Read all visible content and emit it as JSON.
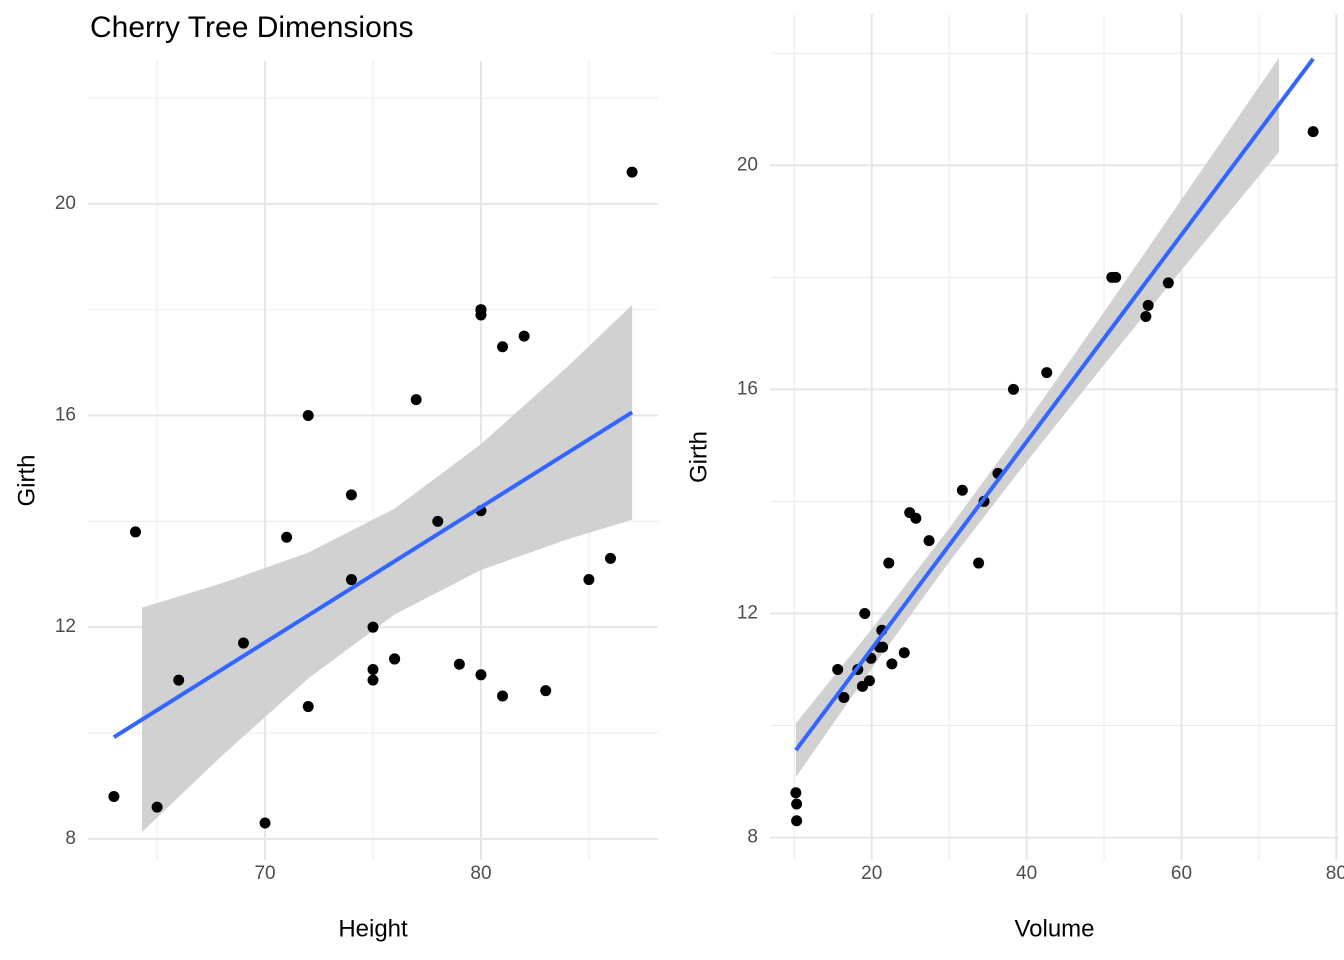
{
  "chart_data": [
    {
      "type": "scatter",
      "title": "Cherry Tree Dimensions",
      "x_label": "Height",
      "y_label": "Girth",
      "x": [
        70,
        65,
        63,
        72,
        81,
        83,
        66,
        75,
        80,
        75,
        79,
        76,
        76,
        69,
        75,
        74,
        85,
        86,
        71,
        64,
        78,
        80,
        74,
        72,
        77,
        81,
        82,
        80,
        80,
        80,
        87
      ],
      "values": [
        8.3,
        8.6,
        8.8,
        10.5,
        10.7,
        10.8,
        11.0,
        11.0,
        11.1,
        11.2,
        11.3,
        11.4,
        11.4,
        11.7,
        12.0,
        12.9,
        12.9,
        13.3,
        13.7,
        13.8,
        14.0,
        14.2,
        14.5,
        16.0,
        16.3,
        17.3,
        17.5,
        17.9,
        18.0,
        18.0,
        20.6
      ],
      "color": "#000000",
      "fit": {
        "x": [
          63,
          87
        ],
        "values": [
          9.92,
          16.06
        ],
        "color": "#3366FF"
      },
      "ribbon": {
        "x": [
          64.3,
          68,
          72,
          76,
          80,
          84,
          87
        ],
        "lower": [
          8.13,
          9.57,
          11.03,
          12.24,
          13.08,
          13.66,
          14.03
        ],
        "upper": [
          12.37,
          12.83,
          13.41,
          14.24,
          15.46,
          16.92,
          18.09
        ],
        "color": "#cccccc"
      },
      "xlim": [
        61.8,
        88.2
      ],
      "xticks": [
        70,
        80
      ],
      "xminor": [
        65,
        75,
        85
      ],
      "ylim": [
        7.6,
        22.7
      ],
      "yticks": [
        8,
        12,
        16,
        20
      ],
      "yminor": [
        10,
        14,
        18,
        22
      ],
      "grid": true
    },
    {
      "type": "scatter",
      "x_label": "Volume",
      "y_label": "Girth",
      "x": [
        10.3,
        10.3,
        10.2,
        16.4,
        18.8,
        19.7,
        15.6,
        18.2,
        22.6,
        19.9,
        24.2,
        21.0,
        21.4,
        21.3,
        19.1,
        22.2,
        33.8,
        27.4,
        25.7,
        24.9,
        34.5,
        31.7,
        36.3,
        38.3,
        42.6,
        55.4,
        55.7,
        58.3,
        51.5,
        51.0,
        77.0
      ],
      "values": [
        8.3,
        8.6,
        8.8,
        10.5,
        10.7,
        10.8,
        11.0,
        11.0,
        11.1,
        11.2,
        11.3,
        11.4,
        11.4,
        11.7,
        12.0,
        12.9,
        12.9,
        13.3,
        13.7,
        13.8,
        14.0,
        14.2,
        14.5,
        16.0,
        16.3,
        17.3,
        17.5,
        17.9,
        18.0,
        18.0,
        20.6
      ],
      "color": "#000000",
      "fit": {
        "x": [
          10.2,
          77
        ],
        "values": [
          9.56,
          21.9
        ],
        "color": "#3366FF"
      },
      "ribbon": {
        "x": [
          10.2,
          20,
          30,
          40,
          50,
          60,
          72.6
        ],
        "lower": [
          9.08,
          11.02,
          12.92,
          14.71,
          16.44,
          18.13,
          20.24
        ],
        "upper": [
          10.04,
          11.72,
          13.52,
          15.41,
          17.38,
          19.39,
          21.92
        ],
        "color": "#cccccc"
      },
      "xlim": [
        6.86,
        80.34
      ],
      "xticks": [
        20,
        40,
        60,
        80
      ],
      "xminor": [
        10,
        30,
        50,
        70
      ],
      "ylim": [
        7.6,
        22.7
      ],
      "yticks": [
        8,
        12,
        16,
        20
      ],
      "yminor": [
        10,
        14,
        18,
        22
      ],
      "grid": true
    }
  ]
}
